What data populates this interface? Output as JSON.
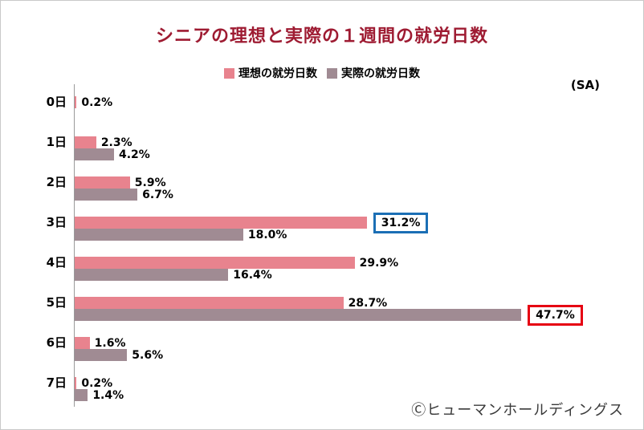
{
  "title": "シニアの理想と実際の１週間の就労日数",
  "note": "(SA)",
  "footer": "Ⓒヒューマンホールディングス",
  "legend": [
    {
      "label": "理想の就労日数",
      "color": "#E8838E"
    },
    {
      "label": "実際の就労日数",
      "color": "#A08B93"
    }
  ],
  "chart_data": {
    "type": "bar",
    "orientation": "horizontal",
    "title": "シニアの理想と実際の１週間の就労日数",
    "categories": [
      "0日",
      "1日",
      "2日",
      "3日",
      "4日",
      "5日",
      "6日",
      "7日"
    ],
    "series": [
      {
        "name": "理想の就労日数",
        "color": "#E8838E",
        "values": [
          0.2,
          2.3,
          5.9,
          31.2,
          29.9,
          28.7,
          1.6,
          0.2
        ]
      },
      {
        "name": "実際の就労日数",
        "color": "#A08B93",
        "values": [
          null,
          4.2,
          6.7,
          18.0,
          16.4,
          47.7,
          5.6,
          1.4
        ]
      }
    ],
    "value_suffix": "%",
    "xlim": [
      0,
      50
    ],
    "grid": false,
    "legend_position": "top-center",
    "highlights": [
      {
        "category": "3日",
        "series": 0,
        "box_color": "#1B6FB5"
      },
      {
        "category": "5日",
        "series": 1,
        "box_color": "#E60012"
      }
    ]
  }
}
